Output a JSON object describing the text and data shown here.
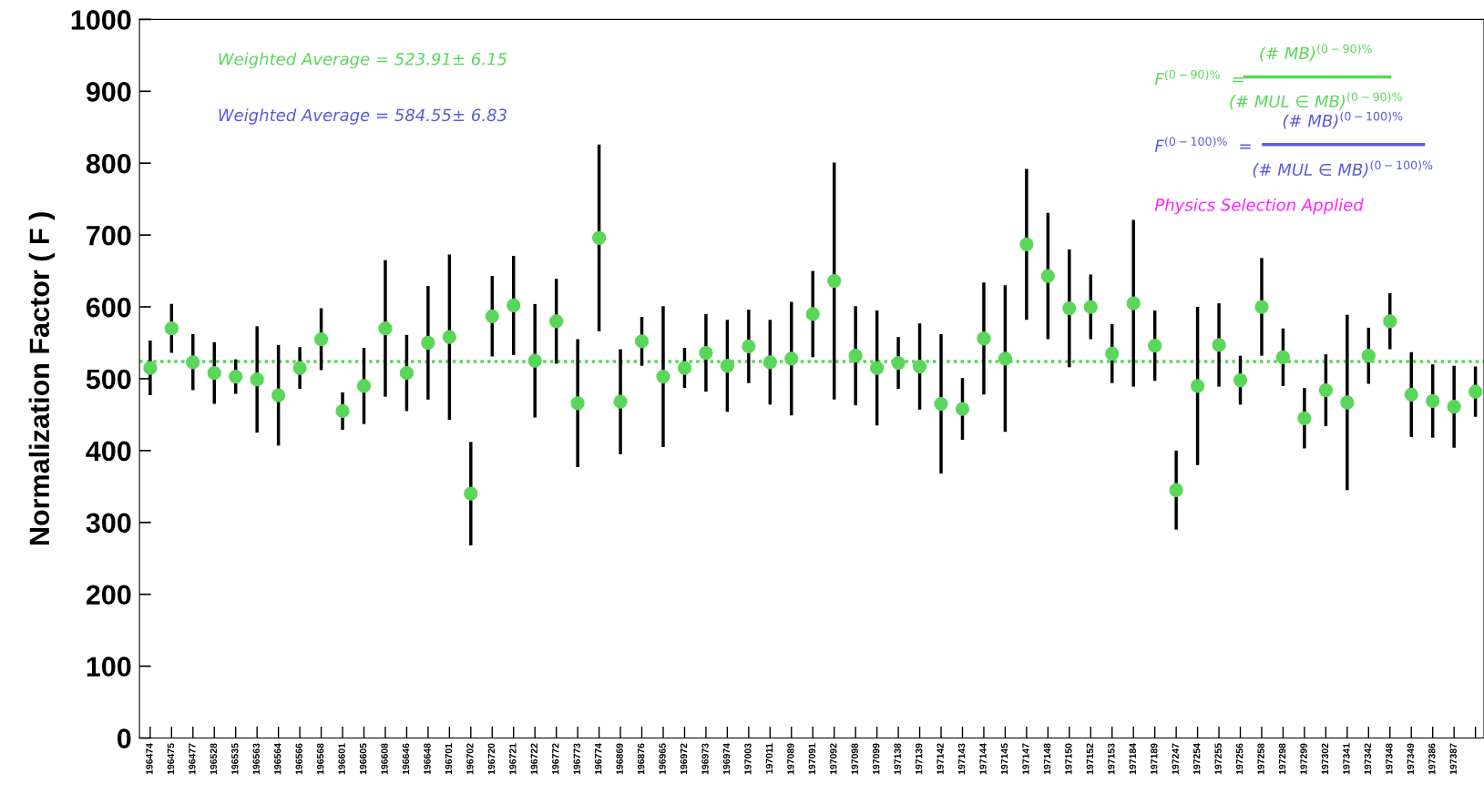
{
  "chart_data": {
    "type": "scatter",
    "ylabel": "Normalization Factor ( F )",
    "categories": [
      "196474",
      "196475",
      "196477",
      "196528",
      "196535",
      "196563",
      "196564",
      "196566",
      "196568",
      "196601",
      "196605",
      "196608",
      "196646",
      "196648",
      "196701",
      "196702",
      "196720",
      "196721",
      "196722",
      "196772",
      "196773",
      "196774",
      "196869",
      "196876",
      "196965",
      "196972",
      "196973",
      "196974",
      "197003",
      "197011",
      "197089",
      "197091",
      "197092",
      "197098",
      "197099",
      "197138",
      "197139",
      "197142",
      "197143",
      "197144",
      "197145",
      "197147",
      "197148",
      "197150",
      "197152",
      "197153",
      "197184",
      "197189",
      "197247",
      "197254",
      "197255",
      "197256",
      "197258",
      "197298",
      "197299",
      "197302",
      "197341",
      "197342",
      "197348",
      "197349",
      "197386",
      "197387",
      null
    ],
    "series": [
      {
        "color": "#5ad75a",
        "values": [
          515,
          570,
          523,
          508,
          503,
          499,
          477,
          515,
          555,
          455,
          490,
          570,
          508,
          550,
          558,
          340,
          587,
          602,
          525,
          580,
          466,
          696,
          468,
          552,
          503,
          515,
          536,
          518,
          545,
          523,
          528,
          590,
          636,
          532,
          515,
          522,
          517,
          465,
          458,
          556,
          528,
          687,
          643,
          598,
          600,
          535,
          605,
          546,
          345,
          490,
          547,
          498,
          600,
          530,
          445,
          484,
          467,
          532,
          580,
          478,
          469,
          461,
          482
        ],
        "errors": [
          38,
          34,
          39,
          43,
          24,
          74,
          70,
          29,
          43,
          26,
          53,
          95,
          53,
          79,
          115,
          72,
          56,
          69,
          79,
          59,
          89,
          130,
          73,
          34,
          98,
          28,
          54,
          64,
          51,
          59,
          79,
          60,
          165,
          69,
          80,
          36,
          60,
          97,
          43,
          78,
          102,
          105,
          88,
          82,
          45,
          41,
          116,
          49,
          55,
          110,
          58,
          34,
          68,
          40,
          42,
          50,
          122,
          39,
          39,
          59,
          51,
          57,
          35
        ]
      }
    ],
    "ylim": [
      0,
      1000
    ],
    "yticks": [
      0,
      100,
      200,
      300,
      400,
      500,
      600,
      700,
      800,
      900,
      1000
    ],
    "marker": "circle",
    "grid": false,
    "legend": false,
    "ref_lines": [
      {
        "axis": "y",
        "value": 523.91,
        "color": "#5ad75a",
        "line_style": "dotted"
      }
    ],
    "annotations": [
      "Weighted Average = 523.91± 6.15",
      "Weighted Average = 584.55± 6.83",
      "F$^{(0−90)%}$  =",
      "(# MB)$^{(0−90)%}$",
      "(# MUL ∈ MB)$^{(0−90)%}$",
      "F$^{(0−100)%}$  =",
      "(# MB)$^{(0−100)%}$",
      "(# MUL ∈ MB)$^{(0−100)%}$",
      "Physics Selection Applied"
    ]
  }
}
